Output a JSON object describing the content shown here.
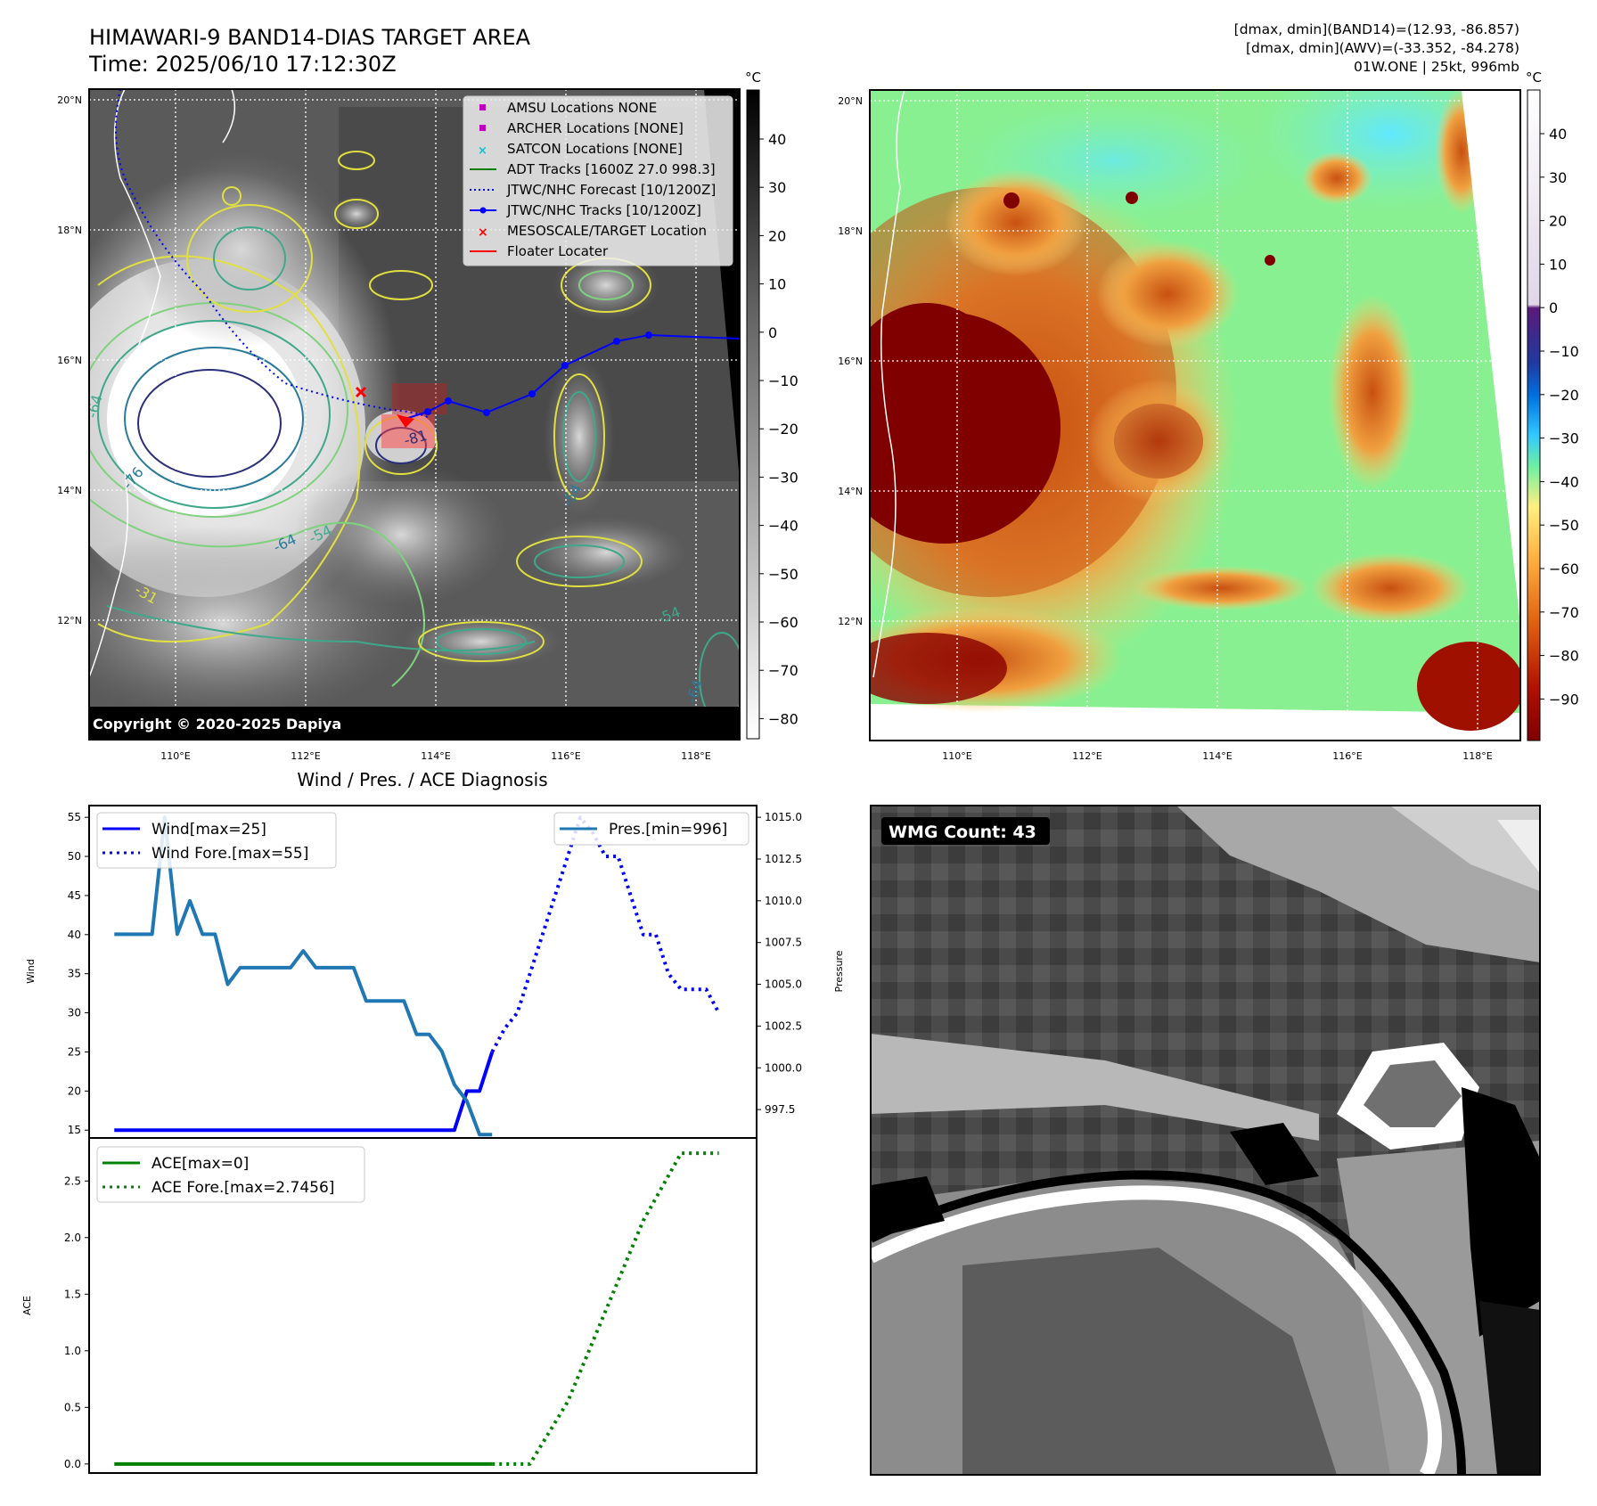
{
  "header": {
    "title": "HIMAWARI-9 BAND14-DIAS TARGET AREA",
    "time": "Time: 2025/06/10 17:12:30Z",
    "dmax_band14": "[dmax, dmin](BAND14)=(12.93, -86.857)",
    "dmax_awv": "[dmax, dmin](AWV)=(-33.352, -84.278)",
    "storm": "01W.ONE | 25kt, 996mb"
  },
  "maps": {
    "lat_labels": [
      "20°N",
      "18°N",
      "16°N",
      "14°N",
      "12°N"
    ],
    "lon_labels": [
      "110°E",
      "112°E",
      "114°E",
      "116°E",
      "118°E"
    ],
    "copyright": "Copyright © 2020-2025 Dapiya",
    "unit": "°C",
    "ir_colorbar_ticks": [
      "40",
      "30",
      "20",
      "10",
      "0",
      "−10",
      "−20",
      "−30",
      "−40",
      "−50",
      "−60",
      "−70",
      "−80"
    ],
    "wv_colorbar_ticks": [
      "40",
      "30",
      "20",
      "10",
      "0",
      "−10",
      "−20",
      "−30",
      "−40",
      "−50",
      "−60",
      "−70",
      "−80",
      "−90"
    ],
    "legend": [
      {
        "label": "AMSU Locations NONE",
        "marker": "square",
        "color": "#bf00bf"
      },
      {
        "label": "ARCHER Locations [NONE]",
        "marker": "square",
        "color": "#bf00bf"
      },
      {
        "label": "SATCON Locations [NONE]",
        "marker": "x",
        "color": "#17becf"
      },
      {
        "label": "ADT Tracks [1600Z 27.0 998.3]",
        "marker": "line",
        "color": "#008000"
      },
      {
        "label": "JTWC/NHC Forecast [10/1200Z]",
        "marker": "dotted",
        "color": "#0000ff"
      },
      {
        "label": "JTWC/NHC Tracks [10/1200Z]",
        "marker": "linedot",
        "color": "#0000ff"
      },
      {
        "label": "MESOSCALE/TARGET Location",
        "marker": "x",
        "color": "#ff0000"
      },
      {
        "label": "Floater Locater",
        "marker": "line",
        "color": "#ff0000"
      }
    ],
    "contour_labels": [
      "-76",
      "-64",
      "-54",
      "-31",
      "-81"
    ]
  },
  "diagnosis": {
    "title": "Wind / Pres. / ACE Diagnosis",
    "wmg_count": "WMG Count: 43"
  },
  "chart_data": [
    {
      "type": "line",
      "ylabel": "Wind",
      "y2label": "Pressure",
      "ylim": [
        14,
        56.5
      ],
      "y2lim": [
        995.8,
        1015.7
      ],
      "yticks": [
        15,
        20,
        25,
        30,
        35,
        40,
        45,
        50,
        55
      ],
      "y2ticks": [
        "997.5",
        "1000.0",
        "1002.5",
        "1005.0",
        "1007.5",
        "1010.0",
        "1012.5",
        "1015.0"
      ],
      "xlim": [
        0,
        53
      ],
      "legend_left": [
        "Wind[max=25]",
        "Wind Fore.[max=55]"
      ],
      "legend_right": [
        "Pres.[min=996]"
      ],
      "series": [
        {
          "name": "Wind[max=25]",
          "axis": "left",
          "style": "solid",
          "color": "#0000ff",
          "x": [
            2,
            29,
            30,
            31,
            32
          ],
          "y": [
            15,
            15,
            20,
            20,
            25
          ]
        },
        {
          "name": "Wind Fore.[max=55]",
          "axis": "left",
          "style": "dotted",
          "color": "#0000ff",
          "x": [
            32,
            33,
            34,
            35,
            36,
            37,
            38,
            39,
            40,
            41,
            42,
            43,
            44,
            45,
            46,
            47,
            48,
            49,
            50
          ],
          "y": [
            25,
            28,
            30,
            35,
            40,
            45,
            50,
            55,
            53,
            50,
            50,
            45,
            40,
            40,
            35,
            33,
            33,
            33,
            30
          ]
        },
        {
          "name": "Pres.[min=996]",
          "axis": "right",
          "style": "solid",
          "color": "#1f77b4",
          "x": [
            2,
            4,
            5,
            6,
            7,
            8,
            9,
            10,
            11,
            12,
            13,
            14,
            15,
            16,
            17,
            18,
            19,
            20,
            21,
            22,
            23,
            24,
            25,
            26,
            27,
            28,
            29,
            30,
            31,
            32
          ],
          "y": [
            1008,
            1008,
            1008,
            1015,
            1008,
            1010,
            1008,
            1008,
            1005,
            1006,
            1006,
            1006,
            1006,
            1006,
            1007,
            1006,
            1006,
            1006,
            1006,
            1004,
            1004,
            1004,
            1004,
            1002,
            1002,
            1001,
            999,
            998,
            996,
            996
          ]
        }
      ]
    },
    {
      "type": "line",
      "ylabel": "ACE",
      "ylim": [
        -0.08,
        2.88
      ],
      "yticks": [
        "0.0",
        "0.5",
        "1.0",
        "1.5",
        "2.0",
        "2.5"
      ],
      "xlim": [
        0,
        53
      ],
      "legend": [
        "ACE[max=0]",
        "ACE Fore.[max=2.7456]"
      ],
      "series": [
        {
          "name": "ACE[max=0]",
          "style": "solid",
          "color": "#008000",
          "x": [
            2,
            32
          ],
          "y": [
            0,
            0
          ]
        },
        {
          "name": "ACE Fore.[max=2.7456]",
          "style": "dotted",
          "color": "#008000",
          "x": [
            32,
            35,
            38,
            41,
            44,
            47,
            50
          ],
          "y": [
            0,
            0,
            0.55,
            1.35,
            2.15,
            2.7456,
            2.7456
          ]
        }
      ]
    }
  ]
}
